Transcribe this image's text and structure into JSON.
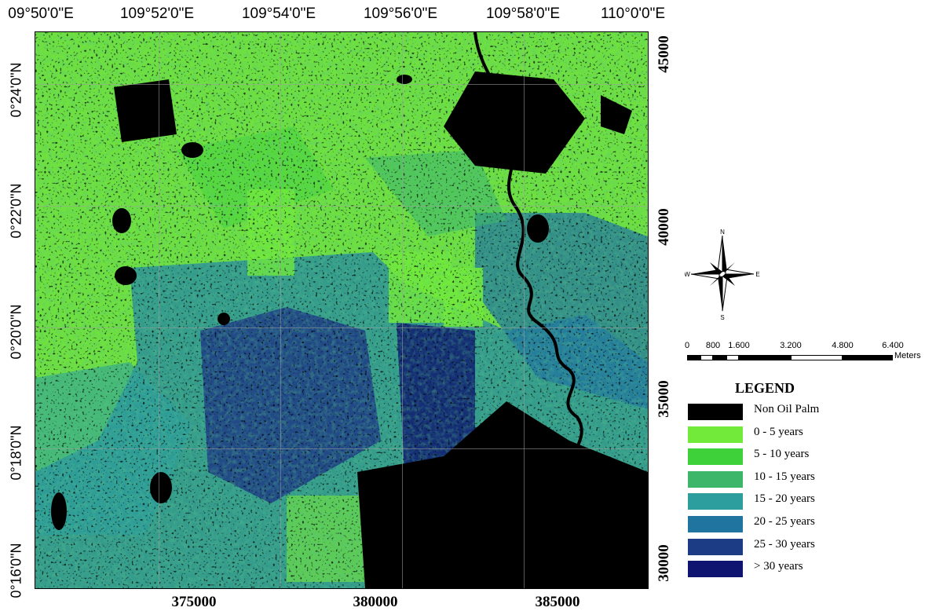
{
  "map": {
    "top_ticks": [
      "09°50'0\"E",
      "109°52'0\"E",
      "109°54'0\"E",
      "109°56'0\"E",
      "109°58'0\"E",
      "110°0'0\"E"
    ],
    "left_ticks": [
      "0°24'0\"N",
      "0°22'0\"N",
      "0°20'0\"N",
      "0°18'0\"N",
      "0°16'0\"N"
    ],
    "right_ticks": [
      "45000",
      "40000",
      "35000",
      "30000"
    ],
    "bottom_ticks": [
      "375000",
      "380000",
      "385000"
    ]
  },
  "compass": {
    "n": "N",
    "s": "S",
    "e": "E",
    "w": "W"
  },
  "scale": {
    "labels": [
      "0",
      "800",
      "1.600",
      "3.200",
      "4.800",
      "6.400"
    ],
    "unit": "Meters"
  },
  "legend": {
    "title": "LEGEND",
    "items": [
      {
        "label": "Non Oil Palm",
        "color": "#000000"
      },
      {
        "label": "0 - 5 years",
        "color": "#72ea3a"
      },
      {
        "label": "5 - 10 years",
        "color": "#3fd13a"
      },
      {
        "label": "10 - 15 years",
        "color": "#3eb66a"
      },
      {
        "label": "15 - 20 years",
        "color": "#2c9e9e"
      },
      {
        "label": "20 - 25 years",
        "color": "#2074a0"
      },
      {
        "label": "25 - 30 years",
        "color": "#1d3c86"
      },
      {
        "label": "> 30 years",
        "color": "#0e1470"
      }
    ]
  }
}
